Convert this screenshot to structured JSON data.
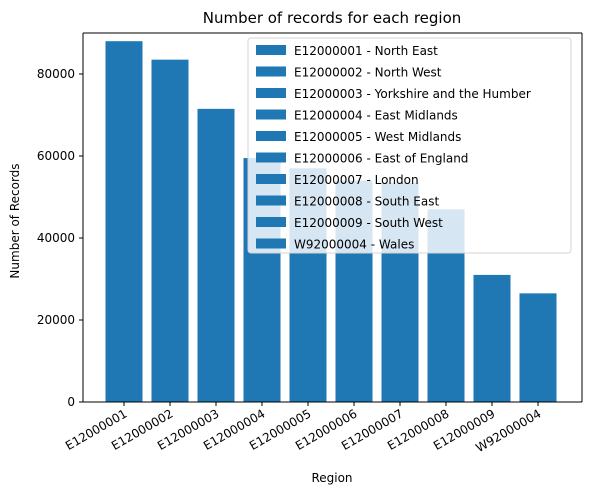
{
  "chart_data": {
    "type": "bar",
    "title": "Number of records for each region",
    "xlabel": "Region",
    "ylabel": "Number of Records",
    "ylim": [
      0,
      90000
    ],
    "yticks": [
      0,
      20000,
      40000,
      60000,
      80000
    ],
    "categories": [
      "E12000001",
      "E12000002",
      "E12000003",
      "E12000004",
      "E12000005",
      "E12000006",
      "E12000007",
      "E12000008",
      "E12000009",
      "W92000004"
    ],
    "values": [
      88000,
      83500,
      71500,
      59500,
      57000,
      54000,
      53500,
      47000,
      31000,
      26500
    ],
    "legend": {
      "position": "upper-right",
      "entries": [
        "E12000001 - North East",
        "E12000002 - North West",
        "E12000003 - Yorkshire and the Humber",
        "E12000004 - East Midlands",
        "E12000005 - West Midlands",
        "E12000006 - East of England",
        "E12000007 - London",
        "E12000008 - South East",
        "E12000009 - South West",
        "W92000004 - Wales"
      ]
    },
    "bar_color": "#1f77b4",
    "grid": false
  }
}
